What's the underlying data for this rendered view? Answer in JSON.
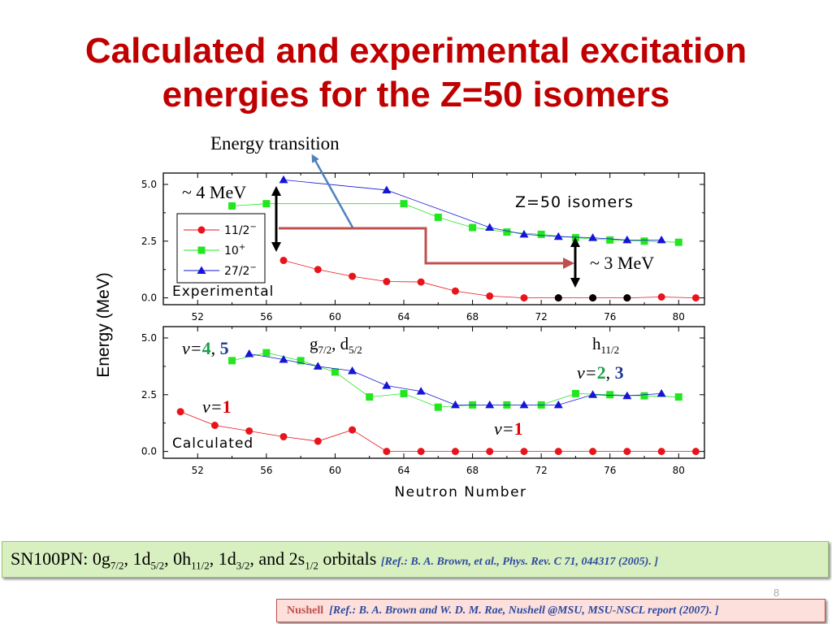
{
  "slide": {
    "title_line1": "Calculated and experimental excitation",
    "title_line2": "energies for the Z=50 isomers",
    "page_number": "8"
  },
  "annotations": {
    "energy_transition": "Energy transition",
    "four_mev": "~ 4 MeV",
    "three_mev": "~ 3 MeV",
    "nu45_prefix": "v=",
    "nu45_a": "4",
    "nu45_sep": ", ",
    "nu45_b": "5",
    "g_orb": "g",
    "g_sub": "7/2",
    "d_sep": ", d",
    "d_sub": "5/2",
    "h_orb": "h",
    "h_sub": "11/2",
    "nu23_prefix": "v=",
    "nu23_a": "2",
    "nu23_sep": ", ",
    "nu23_b": "3",
    "nu1_left_prefix": "v=",
    "nu1_left_val": "1",
    "nu1_right_prefix": "v=",
    "nu1_right_val": "1"
  },
  "colors": {
    "title": "#c00000",
    "series_11_2": "#e8141c",
    "series_10": "#22e61e",
    "series_27_2": "#1515d6",
    "black_points": "#000000",
    "arrow_red": "#c0504d",
    "arrow_blue": "#4f81bd",
    "nu_green": "#1aa04a",
    "nu_blue": "#1f3a93",
    "nu_red": "#e00000"
  },
  "chart_data": {
    "type": "scatter",
    "ylabel": "Energy (MeV)",
    "xlabel": "Neutron Number",
    "panels": [
      {
        "label": "Experimental",
        "inset_title": "Z=50 isomers",
        "xlim": [
          50,
          81.5
        ],
        "ylim": [
          -0.3,
          5.5
        ],
        "x_ticks": [
          "52",
          "56",
          "60",
          "64",
          "68",
          "72",
          "76",
          "80"
        ],
        "y_ticks": [
          "0.0",
          "2.5",
          "5.0"
        ],
        "legend": {
          "placement": "top-left",
          "entries": [
            {
              "series": "11/2",
              "label": "11/2",
              "sup": "−"
            },
            {
              "series": "10",
              "label": "10",
              "sup": "+"
            },
            {
              "series": "27/2",
              "label": "27/2",
              "sup": "−"
            }
          ]
        },
        "series": [
          {
            "key": "11/2",
            "marker": "circle",
            "x": [
              57,
              59,
              61,
              63,
              65,
              67,
              69,
              71,
              73,
              75,
              77,
              79,
              81
            ],
            "y": [
              1.65,
              1.25,
              0.95,
              0.72,
              0.7,
              0.3,
              0.08,
              0.0,
              0.0,
              0.0,
              0.0,
              0.04,
              0.0
            ]
          },
          {
            "key": "10",
            "marker": "square",
            "x": [
              54,
              56,
              64,
              66,
              68,
              70,
              72,
              74,
              76,
              78,
              80
            ],
            "y": [
              4.05,
              4.15,
              4.15,
              3.55,
              3.1,
              2.9,
              2.8,
              2.65,
              2.55,
              2.5,
              2.45
            ]
          },
          {
            "key": "27/2",
            "marker": "triangle",
            "x": [
              57,
              63,
              69,
              71,
              73,
              75,
              77,
              79
            ],
            "y": [
              5.2,
              4.75,
              3.1,
              2.8,
              2.7,
              2.65,
              2.55,
              2.55
            ]
          },
          {
            "key": "black",
            "marker": "circle",
            "x": [
              73,
              75,
              77
            ],
            "y": [
              0.0,
              0.0,
              0.0
            ]
          }
        ]
      },
      {
        "label": "Calculated",
        "xlim": [
          50,
          81.5
        ],
        "ylim": [
          -0.3,
          5.5
        ],
        "x_ticks": [
          "52",
          "56",
          "60",
          "64",
          "68",
          "72",
          "76",
          "80"
        ],
        "y_ticks": [
          "0.0",
          "2.5",
          "5.0"
        ],
        "series": [
          {
            "key": "11/2",
            "marker": "circle",
            "x": [
              51,
              53,
              55,
              57,
              59,
              61,
              63,
              65,
              67,
              69,
              71,
              73,
              75,
              77,
              79,
              81
            ],
            "y": [
              1.75,
              1.15,
              0.9,
              0.65,
              0.45,
              0.95,
              0.0,
              0.0,
              0.0,
              0.0,
              0.0,
              0.0,
              0.0,
              0.0,
              0.0,
              0.0
            ]
          },
          {
            "key": "10",
            "marker": "square",
            "x": [
              54,
              56,
              58,
              60,
              62,
              64,
              66,
              68,
              70,
              72,
              74,
              76,
              78,
              80
            ],
            "y": [
              4.0,
              4.35,
              4.0,
              3.5,
              2.4,
              2.55,
              1.95,
              2.05,
              2.05,
              2.05,
              2.55,
              2.5,
              2.45,
              2.4
            ]
          },
          {
            "key": "27/2",
            "marker": "triangle",
            "x": [
              55,
              57,
              59,
              61,
              63,
              65,
              67,
              69,
              71,
              73,
              75,
              77,
              79
            ],
            "y": [
              4.3,
              4.05,
              3.75,
              3.55,
              2.9,
              2.65,
              2.05,
              2.05,
              2.05,
              2.05,
              2.5,
              2.45,
              2.55
            ]
          }
        ]
      }
    ]
  },
  "footer": {
    "sn_prefix": "SN100PN: 0g",
    "sn_s1": "7/2",
    "sn_t1": ", 1d",
    "sn_s2": "5/2",
    "sn_t2": ", 0h",
    "sn_s3": "11/2",
    "sn_t3": ", 1d",
    "sn_s4": "3/2",
    "sn_t4": ", and 2s",
    "sn_s5": "1/2",
    "sn_t5": " orbitals ",
    "sn_ref": "[Ref.: B. A. Brown, et al., Phys. Rev. C 71, 044317 (2005). ]",
    "nushell_label": "Nushell",
    "nushell_ref": "[Ref.: B. A. Brown and W. D. M. Rae, Nushell @MSU, MSU-NSCL report (2007). ]"
  }
}
